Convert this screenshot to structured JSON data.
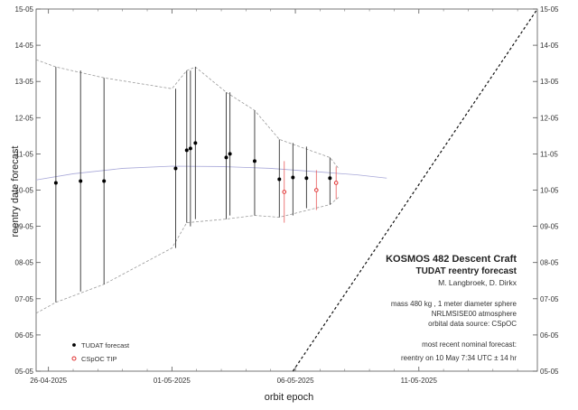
{
  "chart_data": {
    "type": "scatter",
    "xlabel": "orbit epoch",
    "ylabel": "reentry date forecast",
    "x_axis": {
      "min_day": -0.5,
      "max_day": 19.8,
      "ticks": [
        {
          "day": 0,
          "label": "26-04-2025"
        },
        {
          "day": 5,
          "label": "01-05-2025"
        },
        {
          "day": 10,
          "label": "06-05-2025"
        },
        {
          "day": 15,
          "label": "11-05-2025"
        }
      ]
    },
    "y_axis": {
      "min_day": 9,
      "max_day": 19,
      "ticks": [
        {
          "day": 9,
          "label": "05-05"
        },
        {
          "day": 10,
          "label": "06-05"
        },
        {
          "day": 11,
          "label": "07-05"
        },
        {
          "day": 12,
          "label": "08-05"
        },
        {
          "day": 13,
          "label": "09-05"
        },
        {
          "day": 14,
          "label": "10-05"
        },
        {
          "day": 15,
          "label": "11-05"
        },
        {
          "day": 16,
          "label": "12-05"
        },
        {
          "day": 17,
          "label": "13-05"
        },
        {
          "day": 18,
          "label": "14-05"
        },
        {
          "day": 19,
          "label": "15-05"
        }
      ]
    },
    "series": [
      {
        "name": "TUDAT forecast",
        "color": "#000000",
        "marker": "filled-circle",
        "points": [
          {
            "x": 0.3,
            "y": 14.2,
            "low": 10.9,
            "high": 17.4
          },
          {
            "x": 1.3,
            "y": 14.25,
            "low": 11.2,
            "high": 17.3
          },
          {
            "x": 2.25,
            "y": 14.25,
            "low": 11.4,
            "high": 17.1
          },
          {
            "x": 5.15,
            "y": 14.6,
            "low": 12.4,
            "high": 16.8
          },
          {
            "x": 5.6,
            "y": 15.1,
            "low": 13.1,
            "high": 17.3
          },
          {
            "x": 5.75,
            "y": 15.15,
            "low": 13.0,
            "high": 17.3
          },
          {
            "x": 5.95,
            "y": 15.3,
            "low": 13.2,
            "high": 17.4
          },
          {
            "x": 7.2,
            "y": 14.9,
            "low": 13.2,
            "high": 16.7
          },
          {
            "x": 7.35,
            "y": 15.0,
            "low": 13.3,
            "high": 16.7
          },
          {
            "x": 8.35,
            "y": 14.8,
            "low": 13.3,
            "high": 16.2
          },
          {
            "x": 9.35,
            "y": 14.3,
            "low": 13.25,
            "high": 15.4
          },
          {
            "x": 9.9,
            "y": 14.35,
            "low": 13.3,
            "high": 15.3
          },
          {
            "x": 10.45,
            "y": 14.33,
            "low": 13.5,
            "high": 15.2
          },
          {
            "x": 11.4,
            "y": 14.33,
            "low": 13.6,
            "high": 14.9
          }
        ]
      },
      {
        "name": "CSpOC TIP",
        "color": "#e03030",
        "marker": "open-circle",
        "points": [
          {
            "x": 9.55,
            "y": 13.95,
            "low": 13.1,
            "high": 14.8
          },
          {
            "x": 10.85,
            "y": 14.0,
            "low": 13.45,
            "high": 14.55
          },
          {
            "x": 11.65,
            "y": 14.2,
            "low": 13.75,
            "high": 14.65
          }
        ]
      }
    ],
    "uncertainty_envelope": {
      "upper": [
        {
          "x": -0.5,
          "y": 17.6
        },
        {
          "x": 0.3,
          "y": 17.4
        },
        {
          "x": 2.25,
          "y": 17.1
        },
        {
          "x": 5.0,
          "y": 16.8
        },
        {
          "x": 5.6,
          "y": 17.3
        },
        {
          "x": 5.95,
          "y": 17.4
        },
        {
          "x": 7.2,
          "y": 16.7
        },
        {
          "x": 8.35,
          "y": 16.2
        },
        {
          "x": 9.35,
          "y": 15.4
        },
        {
          "x": 11.4,
          "y": 14.9
        },
        {
          "x": 11.75,
          "y": 14.6
        }
      ],
      "lower": [
        {
          "x": -0.5,
          "y": 10.6
        },
        {
          "x": 0.3,
          "y": 10.9
        },
        {
          "x": 2.25,
          "y": 11.4
        },
        {
          "x": 5.0,
          "y": 12.4
        },
        {
          "x": 5.6,
          "y": 13.1
        },
        {
          "x": 7.2,
          "y": 13.2
        },
        {
          "x": 8.35,
          "y": 13.3
        },
        {
          "x": 9.35,
          "y": 13.25
        },
        {
          "x": 11.4,
          "y": 13.6
        },
        {
          "x": 11.75,
          "y": 13.8
        }
      ]
    },
    "trend_curve": [
      {
        "x": -0.5,
        "y": 14.28
      },
      {
        "x": 1,
        "y": 14.45
      },
      {
        "x": 3,
        "y": 14.6
      },
      {
        "x": 5,
        "y": 14.66
      },
      {
        "x": 7,
        "y": 14.65
      },
      {
        "x": 9,
        "y": 14.6
      },
      {
        "x": 11,
        "y": 14.5
      },
      {
        "x": 12.5,
        "y": 14.42
      },
      {
        "x": 13.7,
        "y": 14.33
      }
    ],
    "epoch_equals_reentry_line": [
      {
        "x": 9.9,
        "y": 9
      },
      {
        "x": 19.8,
        "y": 19
      }
    ],
    "legend_position": "bottom-left",
    "grid": false,
    "annotations": {
      "title": "KOSMOS 482 Descent Craft",
      "subtitle": "TUDAT reentry forecast",
      "authors": "M. Langbroek, D. Dirkx",
      "notes": [
        "mass 480 kg , 1 meter diameter sphere",
        "NRLMSISE00 atmosphere",
        "orbital data source:  CSpOC"
      ],
      "forecast_notes": [
        "most recent nominal forecast:",
        "reentry on 10 May 7:34 UTC ± 14 hr"
      ]
    }
  }
}
